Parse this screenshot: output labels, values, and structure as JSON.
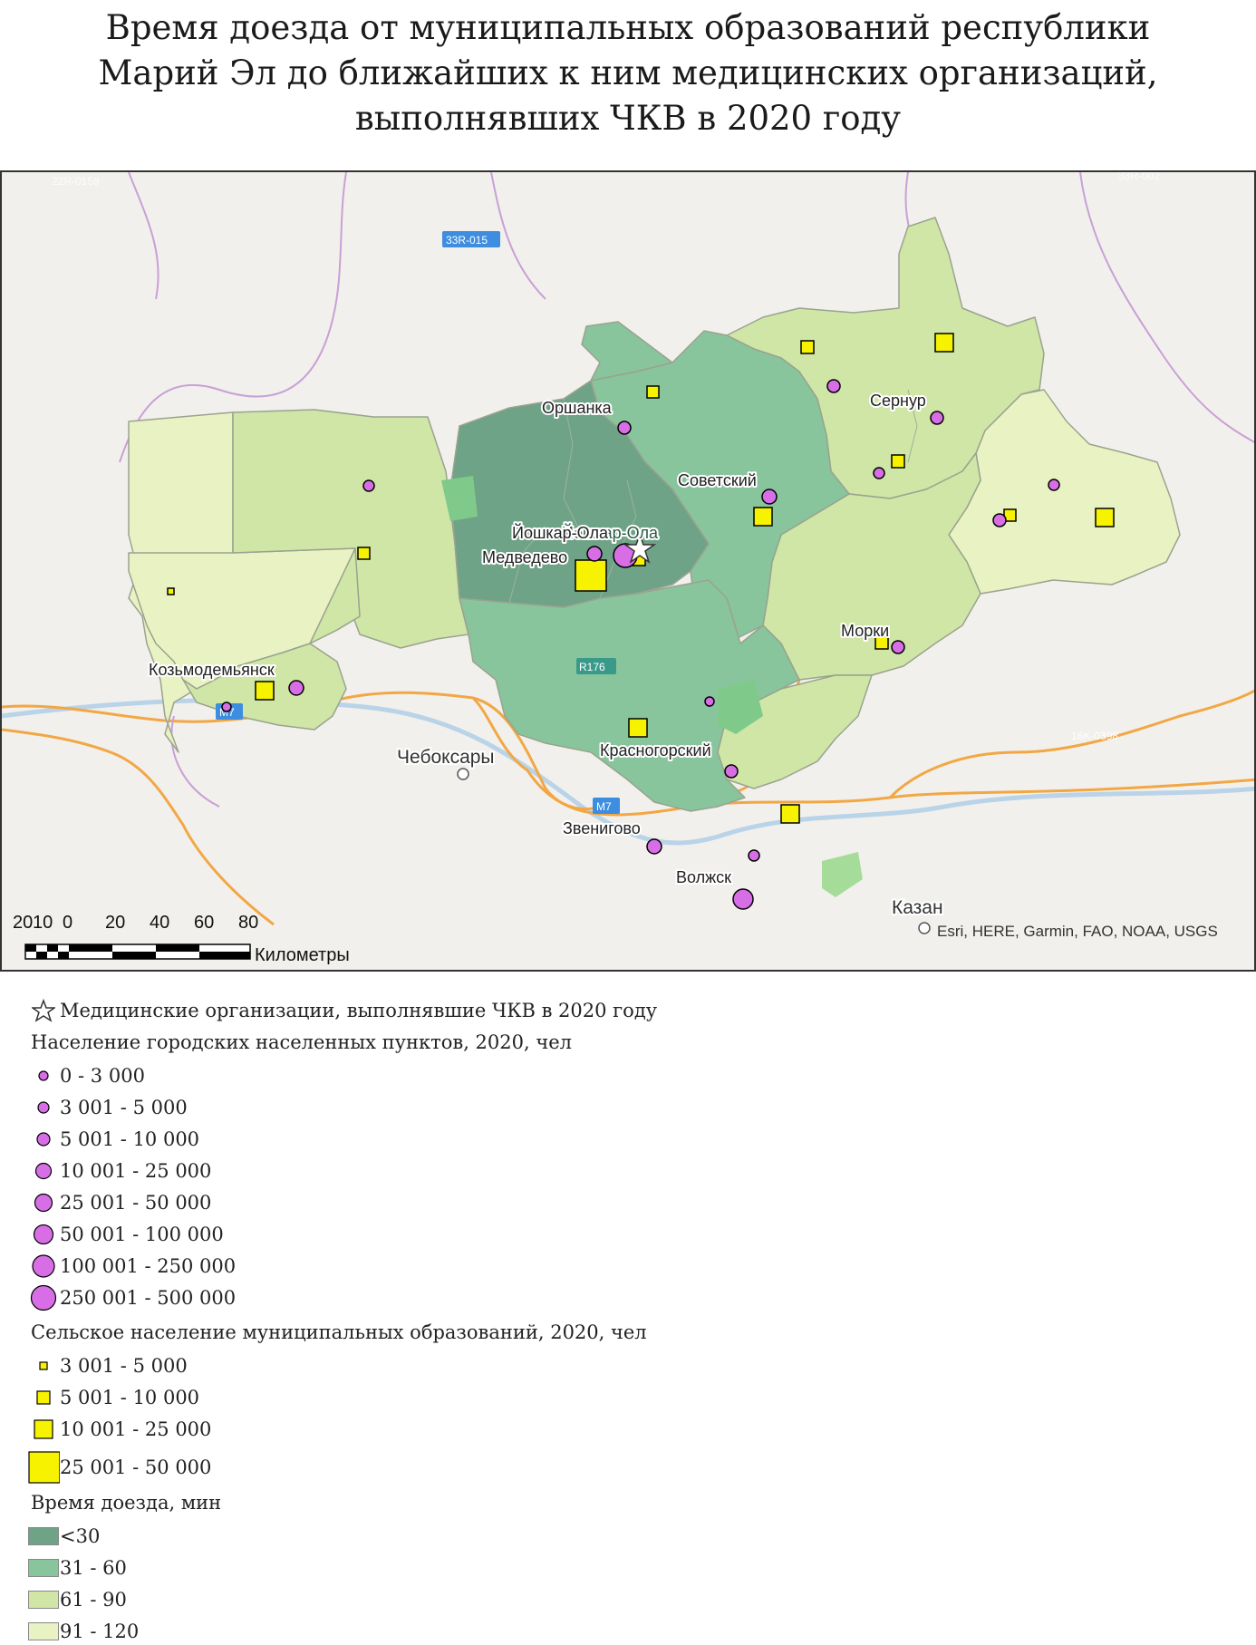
{
  "title": {
    "line1": "Время доезда от муниципальных образований республики",
    "line2": "Марий Эл до ближайших к ним медицинских организаций,",
    "line3": "выполнявших ЧКВ в 2020 году"
  },
  "map": {
    "cities": {
      "orshanka": "Оршанка",
      "sernur": "Сернур",
      "sovetsky": "Советский",
      "yoshkar_ola": "Йошкар-Ола",
      "yoshkar_ola_base": "Йошкар-Ола",
      "medvedevo": "Медведево",
      "kozmodemyansk": "Козьмодемьянск",
      "morki": "Морки",
      "cheboksary": "Чебоксары",
      "krasnogorsky": "Красногорский",
      "zvenigovo": "Звенигово",
      "volzhsk": "Волжск",
      "kazan": "Казан"
    },
    "road_shields": {
      "r1": "33R-015",
      "r2": "M7",
      "r3": "M7",
      "r4": "R176",
      "r5": "22R-0159",
      "r6": "33R-002",
      "r7": "16K-0398"
    },
    "scale": {
      "ticks": [
        "20",
        "10",
        "0",
        "20",
        "40",
        "60",
        "80"
      ],
      "unit": "Километры"
    },
    "attribution": "Esri, HERE, Garmin, FAO, NOAA, USGS",
    "colors": {
      "lt30": "#6fa387",
      "c31_60": "#88c49c",
      "c61_90": "#cfe6a6",
      "c91_120": "#e9f2c2",
      "urban": "#d86ee6",
      "rural": "#f7f200",
      "background": "#f2f0ec"
    }
  },
  "legend": {
    "facility": "Медицинские организации, выполнявшие ЧКВ в 2020 году",
    "urban_heading": "Население городских населенных пунктов, 2020, чел",
    "urban_classes": [
      "0 - 3 000",
      "3 001 - 5 000",
      "5 001 - 10 000",
      "10 001 - 25 000",
      "25 001 - 50 000",
      "50 001 - 100 000",
      "100 001 - 250 000",
      "250 001 - 500 000"
    ],
    "rural_heading": "Сельское население муниципальных образований, 2020, чел",
    "rural_classes": [
      "3 001 - 5 000",
      "5 001 - 10 000",
      "10 001 - 25 000",
      "25 001 - 50 000"
    ],
    "time_heading": "Время доезда, мин",
    "time_classes": [
      "<30",
      "31 - 60",
      "61 - 90",
      "91 - 120"
    ]
  }
}
